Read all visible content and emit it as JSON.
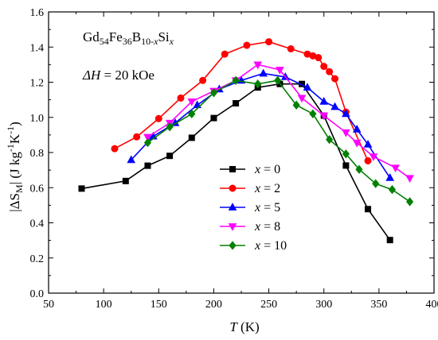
{
  "chart_data": {
    "type": "line",
    "xlabel": {
      "main": "T",
      "unit": " (K)"
    },
    "ylabel": {
      "pre": "|ΔS",
      "sub": "M",
      "mid": "| (J kg",
      "sup1": "-1",
      "mid2": "K",
      "sup2": "-1",
      "post": ")"
    },
    "xlim": [
      50,
      400
    ],
    "ylim": [
      0.0,
      1.6
    ],
    "xticks": [
      "50",
      "100",
      "150",
      "200",
      "250",
      "300",
      "350",
      "400"
    ],
    "yticks": [
      "0.0",
      "0.2",
      "0.4",
      "0.6",
      "0.8",
      "1.0",
      "1.2",
      "1.4",
      "1.6"
    ],
    "grid": false,
    "legend_position": "bottom-right",
    "annotations": {
      "formula": {
        "a": "Gd",
        "a_sub": "54",
        "b": "Fe",
        "b_sub": "36",
        "c": "B",
        "c_sub_num": "10-",
        "c_sub_var": "x",
        "d": "Si",
        "d_sub": "x"
      },
      "field": {
        "prefix": "ΔH",
        "text": " = 20 kOe"
      }
    },
    "series": [
      {
        "name": "x = 0",
        "name_var": "x",
        "name_rest": " = 0",
        "color": "#000000",
        "marker": "square",
        "x": [
          80,
          120,
          140,
          160,
          180,
          200,
          220,
          240,
          260,
          280,
          300,
          320,
          340,
          360
        ],
        "y": [
          0.595,
          0.638,
          0.725,
          0.781,
          0.884,
          0.996,
          1.08,
          1.17,
          1.19,
          1.19,
          1.01,
          0.726,
          0.478,
          0.302
        ]
      },
      {
        "name": "x = 2",
        "name_var": "x",
        "name_rest": " = 2",
        "color": "#ff0000",
        "marker": "circle",
        "x": [
          110,
          130,
          150,
          170,
          190,
          210,
          230,
          250,
          270,
          285,
          290,
          295,
          300,
          305,
          310,
          320,
          340
        ],
        "y": [
          0.822,
          0.889,
          0.993,
          1.11,
          1.21,
          1.36,
          1.41,
          1.43,
          1.39,
          1.36,
          1.35,
          1.34,
          1.29,
          1.26,
          1.22,
          1.03,
          0.753
        ]
      },
      {
        "name": "x = 5",
        "name_var": "x",
        "name_rest": " = 5",
        "color": "#0000ff",
        "marker": "triangle-up",
        "x": [
          125,
          145,
          165,
          185,
          205,
          225,
          245,
          265,
          285,
          300,
          310,
          320,
          330,
          340,
          360
        ],
        "y": [
          0.758,
          0.892,
          0.968,
          1.07,
          1.16,
          1.21,
          1.25,
          1.23,
          1.17,
          1.09,
          1.06,
          1.02,
          0.932,
          0.846,
          0.656
        ]
      },
      {
        "name": "x = 8",
        "name_var": "x",
        "name_rest": " = 8",
        "color": "#ff00ff",
        "marker": "triangle-down",
        "x": [
          140,
          160,
          180,
          200,
          220,
          240,
          260,
          280,
          300,
          320,
          330,
          345,
          365,
          378
        ],
        "y": [
          0.888,
          0.968,
          1.09,
          1.15,
          1.21,
          1.3,
          1.27,
          1.11,
          1.01,
          0.914,
          0.855,
          0.777,
          0.713,
          0.654
        ]
      },
      {
        "name": "x = 10",
        "name_var": "x",
        "name_rest": " = 10",
        "color": "#008000",
        "marker": "diamond",
        "x": [
          140,
          160,
          180,
          200,
          220,
          240,
          258,
          275,
          290,
          305,
          320,
          332,
          347,
          362,
          378
        ],
        "y": [
          0.856,
          0.946,
          1.02,
          1.14,
          1.21,
          1.19,
          1.21,
          1.07,
          1.02,
          0.874,
          0.792,
          0.704,
          0.623,
          0.589,
          0.52
        ]
      }
    ]
  }
}
